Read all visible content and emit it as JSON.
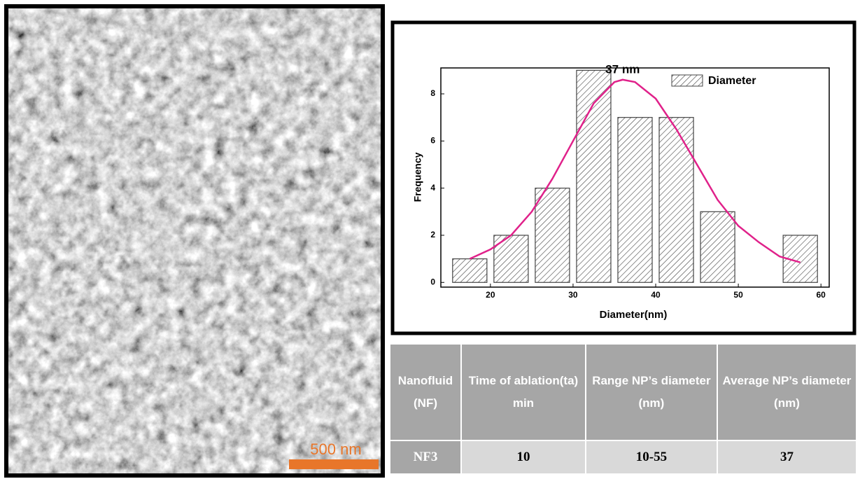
{
  "image": {
    "scale_label": "500 nm"
  },
  "chart_data": {
    "type": "histogram",
    "name": "Diameter",
    "bins": [
      15,
      20,
      25,
      30,
      35,
      40,
      45,
      50,
      55,
      60
    ],
    "counts": [
      1,
      2,
      4,
      9,
      7,
      7,
      3,
      0,
      2
    ],
    "color": "#444444",
    "fit": {
      "color": "#e0218a",
      "x": [
        17.5,
        20,
        22.5,
        25,
        27.5,
        30,
        32.5,
        35,
        36,
        37.5,
        40,
        42.5,
        45,
        47.5,
        50,
        52.5,
        55,
        57.5
      ],
      "values": [
        1.0,
        1.4,
        2.0,
        3.0,
        4.4,
        6.0,
        7.6,
        8.5,
        8.6,
        8.5,
        7.8,
        6.5,
        5.0,
        3.5,
        2.4,
        1.7,
        1.1,
        0.85
      ]
    },
    "annotation": "37 nm",
    "xlabel": "Diameter(nm)",
    "ylabel": "Frequency",
    "xlim": [
      14,
      61
    ],
    "ylim": [
      -0.2,
      9.1
    ],
    "xticks": [
      20,
      30,
      40,
      50,
      60
    ],
    "yticks": [
      0,
      2,
      4,
      6,
      8
    ],
    "legend": "upper right"
  },
  "table": {
    "header": [
      "Nanofluid (NF)",
      "Time of ablation(ta) min",
      "Range NP’s diameter (nm)",
      "Average NP’s diameter (nm)"
    ],
    "rows": [
      [
        "NF3",
        "10",
        "10-55",
        "37"
      ]
    ]
  }
}
